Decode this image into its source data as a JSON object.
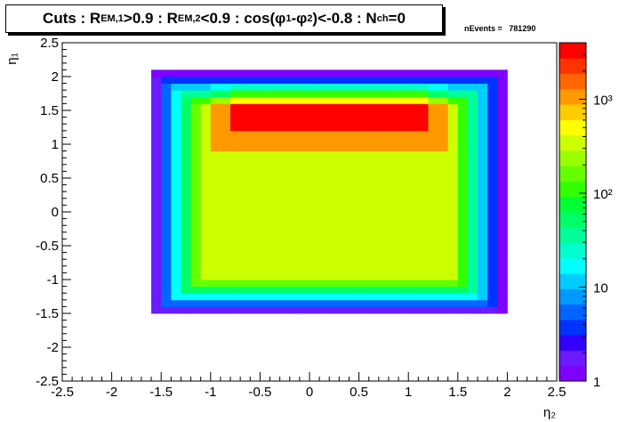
{
  "title": {
    "prefix": "Cuts : R",
    "sub1": "EM,1",
    "mid1": ">0.9 : R",
    "sub2": "EM,2",
    "mid2": "<0.9 : cos(φ",
    "sub3": "1",
    "mid3": "-φ",
    "sub4": "2",
    "mid4": ")<-0.8 : N",
    "sub5": "ch",
    "suffix": "=0"
  },
  "stats": {
    "label": "nEvents =",
    "value": "781290"
  },
  "chart_data": {
    "type": "heatmap",
    "xlabel": "η₂",
    "ylabel": "η₁",
    "xlim": [
      -2.5,
      2.5
    ],
    "ylim": [
      -2.5,
      2.5
    ],
    "xticks": [
      "-2.5",
      "-2",
      "-1.5",
      "-1",
      "-0.5",
      "0",
      "0.5",
      "1",
      "1.5",
      "2",
      "2.5"
    ],
    "yticks": [
      "-2.5",
      "-2",
      "-1.5",
      "-1",
      "-0.5",
      "0",
      "0.5",
      "1",
      "1.5",
      "2",
      "2.5"
    ],
    "zscale": "log",
    "zlim": [
      1,
      4000
    ],
    "zticks": [
      "1",
      "10",
      "10²",
      "10³"
    ],
    "bin_width": 0.1,
    "region": {
      "eta2_range": [
        -1.6,
        1.95
      ],
      "eta1_range": [
        -1.5,
        2.05
      ],
      "peak_region": {
        "eta2": [
          -0.8,
          1.2
        ],
        "eta1": [
          1.2,
          1.9
        ],
        "level": 3000
      },
      "plateau_level": 300,
      "edge_level": 1
    },
    "palette": [
      "#7f00ff",
      "#6a1bff",
      "#3300ff",
      "#0033ff",
      "#0066ff",
      "#0099ff",
      "#00ccff",
      "#00ffff",
      "#00ffcc",
      "#00ff99",
      "#00ff66",
      "#00ff33",
      "#33ff00",
      "#66ff00",
      "#99ff00",
      "#ccff00",
      "#ffff00",
      "#ffcc00",
      "#ff9900",
      "#ff6600",
      "#ff3300",
      "#ff0000"
    ]
  }
}
